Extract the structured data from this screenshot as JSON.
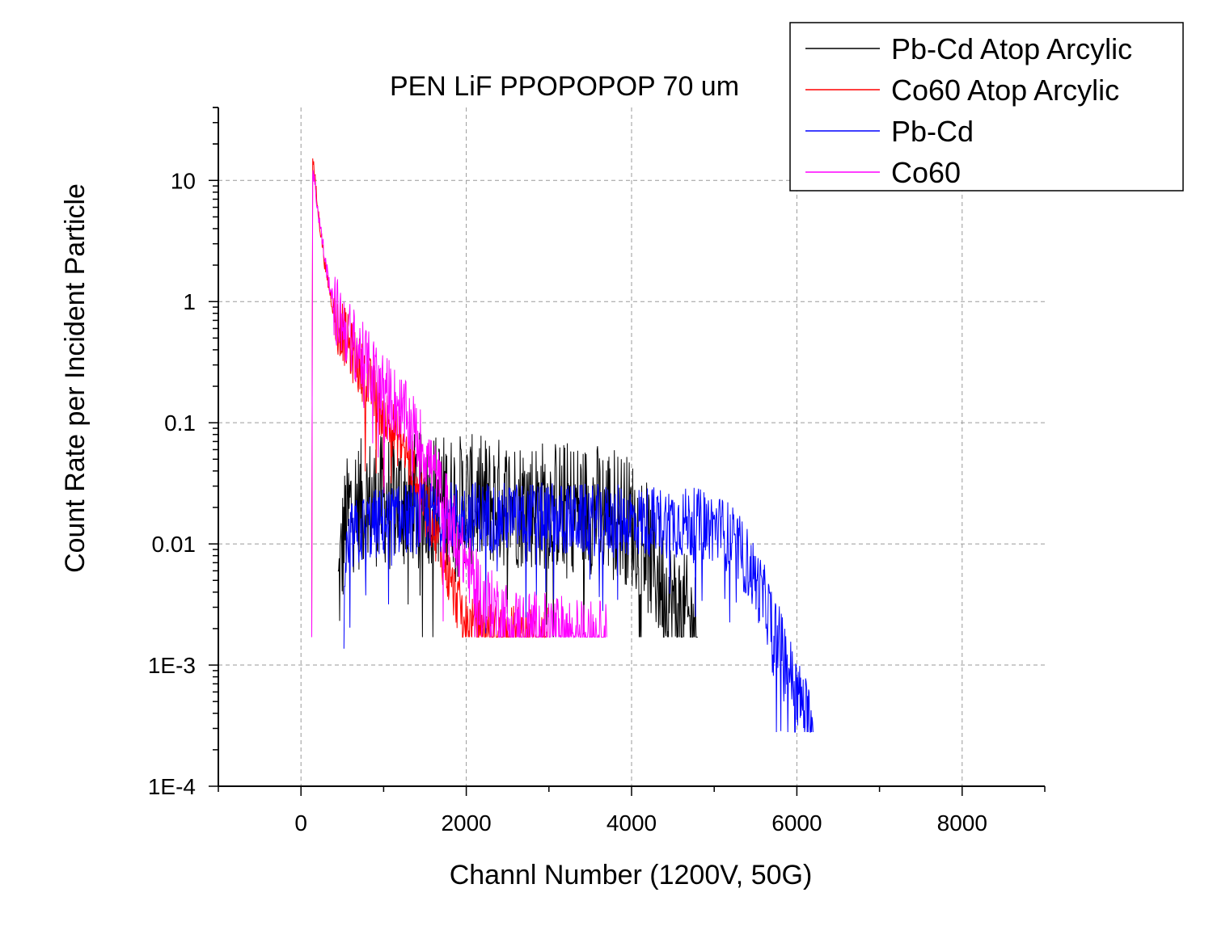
{
  "chart_data": {
    "type": "line",
    "title": "PEN LiF PPOPOPOP 70 um",
    "xlabel": "Channl Number (1200V, 50G)",
    "ylabel": "Count Rate per Incident Particle",
    "xlim": [
      -1000,
      9000
    ],
    "ylim": [
      0.0001,
      40
    ],
    "yscale": "log",
    "grid": true,
    "legend_position": "top-right",
    "x_ticks": [
      {
        "value": 0,
        "label": "0"
      },
      {
        "value": 2000,
        "label": "2000"
      },
      {
        "value": 4000,
        "label": "4000"
      },
      {
        "value": 6000,
        "label": "6000"
      },
      {
        "value": 8000,
        "label": "8000"
      }
    ],
    "y_ticks": [
      {
        "value": 0.0001,
        "label": "1E-4"
      },
      {
        "value": 0.001,
        "label": "1E-3"
      },
      {
        "value": 0.01,
        "label": "0.01"
      },
      {
        "value": 0.1,
        "label": "0.1"
      },
      {
        "value": 1,
        "label": "1"
      },
      {
        "value": 10,
        "label": "10"
      }
    ],
    "series": [
      {
        "name": "Pb-Cd Atop Arcylic",
        "color": "#000000",
        "noise": 0.55,
        "floor": 0.0017,
        "points": [
          [
            450,
            0.004
          ],
          [
            520,
            0.012
          ],
          [
            600,
            0.02
          ],
          [
            800,
            0.022
          ],
          [
            1200,
            0.024
          ],
          [
            2000,
            0.023
          ],
          [
            3000,
            0.021
          ],
          [
            3800,
            0.019
          ],
          [
            4100,
            0.013
          ],
          [
            4300,
            0.006
          ],
          [
            4500,
            0.003
          ],
          [
            4700,
            0.0022
          ],
          [
            4800,
            0.0017
          ]
        ]
      },
      {
        "name": "Co60 Atop Arcylic",
        "color": "#ff0000",
        "noise": 0.25,
        "floor": 0.0017,
        "points": [
          [
            130,
            0.0017
          ],
          [
            140,
            17
          ],
          [
            200,
            6
          ],
          [
            300,
            1.8
          ],
          [
            400,
            0.8
          ],
          [
            600,
            0.4
          ],
          [
            800,
            0.22
          ],
          [
            1000,
            0.12
          ],
          [
            1200,
            0.07
          ],
          [
            1400,
            0.035
          ],
          [
            1600,
            0.015
          ],
          [
            1800,
            0.005
          ],
          [
            2000,
            0.0022
          ],
          [
            2400,
            0.0018
          ],
          [
            3000,
            0.0017
          ]
        ]
      },
      {
        "name": "Pb-Cd",
        "color": "#0000ff",
        "noise": 0.3,
        "floor": 0.00028,
        "points": [
          [
            520,
            0.006
          ],
          [
            600,
            0.011
          ],
          [
            800,
            0.014
          ],
          [
            1200,
            0.016
          ],
          [
            2000,
            0.017
          ],
          [
            3000,
            0.016
          ],
          [
            4000,
            0.0155
          ],
          [
            4600,
            0.015
          ],
          [
            5000,
            0.014
          ],
          [
            5200,
            0.011
          ],
          [
            5400,
            0.007
          ],
          [
            5600,
            0.0035
          ],
          [
            5800,
            0.0015
          ],
          [
            6000,
            0.0006
          ],
          [
            6200,
            0.0003
          ]
        ]
      },
      {
        "name": "Co60",
        "color": "#ff00ff",
        "noise": 0.3,
        "floor": 0.0017,
        "points": [
          [
            130,
            0.0017
          ],
          [
            140,
            13
          ],
          [
            200,
            6
          ],
          [
            300,
            2
          ],
          [
            400,
            0.9
          ],
          [
            600,
            0.5
          ],
          [
            800,
            0.3
          ],
          [
            1000,
            0.2
          ],
          [
            1200,
            0.13
          ],
          [
            1400,
            0.08
          ],
          [
            1600,
            0.04
          ],
          [
            1800,
            0.017
          ],
          [
            2000,
            0.007
          ],
          [
            2200,
            0.0035
          ],
          [
            2600,
            0.0022
          ],
          [
            3400,
            0.0018
          ],
          [
            3700,
            0.0017
          ]
        ]
      }
    ]
  }
}
